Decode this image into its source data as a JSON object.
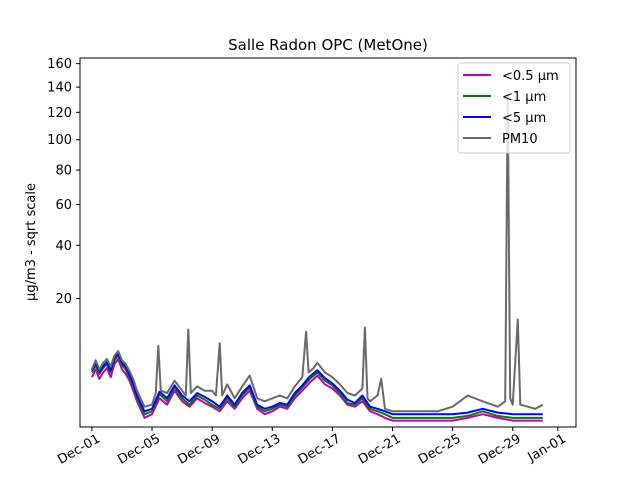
{
  "chart_data": {
    "type": "line",
    "title": "Salle Radon OPC (MetOne)",
    "xlabel": "",
    "ylabel": "µg/m3 - sqrt scale",
    "y_scale": "sqrt",
    "ylim": [
      0,
      165
    ],
    "y_ticks": [
      20,
      40,
      60,
      80,
      100,
      120,
      140,
      160
    ],
    "x_ticks": [
      {
        "date": "2023-12-01",
        "label": "Dec-01"
      },
      {
        "date": "2023-12-05",
        "label": "Dec-05"
      },
      {
        "date": "2023-12-09",
        "label": "Dec-09"
      },
      {
        "date": "2023-12-13",
        "label": "Dec-13"
      },
      {
        "date": "2023-12-17",
        "label": "Dec-17"
      },
      {
        "date": "2023-12-21",
        "label": "Dec-21"
      },
      {
        "date": "2023-12-25",
        "label": "Dec-25"
      },
      {
        "date": "2023-12-29",
        "label": "Dec-29"
      },
      {
        "date": "2024-01-01",
        "label": "Jan-01"
      }
    ],
    "xlim": [
      "2023-11-30T05:00",
      "2024-01-02T05:00"
    ],
    "legend_position": "top-right",
    "series": [
      {
        "name": "<0.5 µm",
        "color": "#bf00bf",
        "points": [
          [
            "2023-12-01T00:00",
            3.0
          ],
          [
            "2023-12-01T06:00",
            4.0
          ],
          [
            "2023-12-01T12:00",
            2.8
          ],
          [
            "2023-12-01T18:00",
            3.6
          ],
          [
            "2023-12-02T00:00",
            4.2
          ],
          [
            "2023-12-02T06:00",
            3.0
          ],
          [
            "2023-12-02T12:00",
            4.8
          ],
          [
            "2023-12-02T18:00",
            5.6
          ],
          [
            "2023-12-03T00:00",
            4.0
          ],
          [
            "2023-12-03T06:00",
            3.4
          ],
          [
            "2023-12-03T12:00",
            2.6
          ],
          [
            "2023-12-03T18:00",
            1.6
          ],
          [
            "2023-12-04T00:00",
            0.8
          ],
          [
            "2023-12-04T12:00",
            0.1
          ],
          [
            "2023-12-05T00:00",
            0.2
          ],
          [
            "2023-12-05T12:00",
            1.0
          ],
          [
            "2023-12-06T00:00",
            0.6
          ],
          [
            "2023-12-06T12:00",
            1.6
          ],
          [
            "2023-12-07T00:00",
            0.8
          ],
          [
            "2023-12-07T12:00",
            0.5
          ],
          [
            "2023-12-08T00:00",
            1.0
          ],
          [
            "2023-12-08T12:00",
            0.7
          ],
          [
            "2023-12-09T00:00",
            0.5
          ],
          [
            "2023-12-09T12:00",
            0.3
          ],
          [
            "2023-12-10T00:00",
            0.8
          ],
          [
            "2023-12-10T12:00",
            0.4
          ],
          [
            "2023-12-11T00:00",
            1.0
          ],
          [
            "2023-12-11T12:00",
            1.6
          ],
          [
            "2023-12-12T00:00",
            0.4
          ],
          [
            "2023-12-12T12:00",
            0.2
          ],
          [
            "2023-12-13T00:00",
            0.3
          ],
          [
            "2023-12-13T12:00",
            0.5
          ],
          [
            "2023-12-14T00:00",
            0.4
          ],
          [
            "2023-12-14T12:00",
            1.0
          ],
          [
            "2023-12-15T00:00",
            1.6
          ],
          [
            "2023-12-15T12:00",
            2.4
          ],
          [
            "2023-12-16T00:00",
            3.2
          ],
          [
            "2023-12-16T12:00",
            2.2
          ],
          [
            "2023-12-17T00:00",
            1.8
          ],
          [
            "2023-12-17T12:00",
            1.2
          ],
          [
            "2023-12-18T00:00",
            0.6
          ],
          [
            "2023-12-18T12:00",
            0.5
          ],
          [
            "2023-12-19T00:00",
            0.8
          ],
          [
            "2023-12-19T12:00",
            0.3
          ],
          [
            "2023-12-20T00:00",
            0.2
          ],
          [
            "2023-12-20T12:00",
            0.1
          ],
          [
            "2023-12-21T00:00",
            0.05
          ],
          [
            "2023-12-22T00:00",
            0.05
          ],
          [
            "2023-12-23T00:00",
            0.05
          ],
          [
            "2023-12-24T00:00",
            0.05
          ],
          [
            "2023-12-25T00:00",
            0.05
          ],
          [
            "2023-12-26T00:00",
            0.1
          ],
          [
            "2023-12-27T00:00",
            0.2
          ],
          [
            "2023-12-28T00:00",
            0.1
          ],
          [
            "2023-12-29T00:00",
            0.05
          ],
          [
            "2023-12-30T00:00",
            0.05
          ],
          [
            "2023-12-31T00:00",
            0.05
          ]
        ]
      },
      {
        "name": "<1 µm",
        "color": "#008000",
        "points": [
          [
            "2023-12-01T00:00",
            3.6
          ],
          [
            "2023-12-01T06:00",
            4.6
          ],
          [
            "2023-12-01T12:00",
            3.4
          ],
          [
            "2023-12-01T18:00",
            4.2
          ],
          [
            "2023-12-02T00:00",
            4.8
          ],
          [
            "2023-12-02T06:00",
            3.6
          ],
          [
            "2023-12-02T12:00",
            5.4
          ],
          [
            "2023-12-02T18:00",
            6.2
          ],
          [
            "2023-12-03T00:00",
            4.6
          ],
          [
            "2023-12-03T06:00",
            4.0
          ],
          [
            "2023-12-03T12:00",
            3.0
          ],
          [
            "2023-12-03T18:00",
            2.0
          ],
          [
            "2023-12-04T00:00",
            1.0
          ],
          [
            "2023-12-04T12:00",
            0.2
          ],
          [
            "2023-12-05T00:00",
            0.3
          ],
          [
            "2023-12-05T12:00",
            1.3
          ],
          [
            "2023-12-06T00:00",
            0.8
          ],
          [
            "2023-12-06T12:00",
            1.9
          ],
          [
            "2023-12-07T00:00",
            1.0
          ],
          [
            "2023-12-07T12:00",
            0.6
          ],
          [
            "2023-12-08T00:00",
            1.2
          ],
          [
            "2023-12-08T12:00",
            0.9
          ],
          [
            "2023-12-09T00:00",
            0.6
          ],
          [
            "2023-12-09T12:00",
            0.4
          ],
          [
            "2023-12-10T00:00",
            1.0
          ],
          [
            "2023-12-10T12:00",
            0.5
          ],
          [
            "2023-12-11T00:00",
            1.2
          ],
          [
            "2023-12-11T12:00",
            1.9
          ],
          [
            "2023-12-12T00:00",
            0.5
          ],
          [
            "2023-12-12T12:00",
            0.3
          ],
          [
            "2023-12-13T00:00",
            0.4
          ],
          [
            "2023-12-13T12:00",
            0.6
          ],
          [
            "2023-12-14T00:00",
            0.5
          ],
          [
            "2023-12-14T12:00",
            1.2
          ],
          [
            "2023-12-15T00:00",
            1.9
          ],
          [
            "2023-12-15T12:00",
            2.8
          ],
          [
            "2023-12-16T00:00",
            3.6
          ],
          [
            "2023-12-16T12:00",
            2.6
          ],
          [
            "2023-12-17T00:00",
            2.1
          ],
          [
            "2023-12-17T12:00",
            1.4
          ],
          [
            "2023-12-18T00:00",
            0.7
          ],
          [
            "2023-12-18T12:00",
            0.6
          ],
          [
            "2023-12-19T00:00",
            1.0
          ],
          [
            "2023-12-19T12:00",
            0.4
          ],
          [
            "2023-12-20T00:00",
            0.3
          ],
          [
            "2023-12-20T12:00",
            0.2
          ],
          [
            "2023-12-21T00:00",
            0.1
          ],
          [
            "2023-12-22T00:00",
            0.1
          ],
          [
            "2023-12-23T00:00",
            0.1
          ],
          [
            "2023-12-24T00:00",
            0.1
          ],
          [
            "2023-12-25T00:00",
            0.1
          ],
          [
            "2023-12-26T00:00",
            0.15
          ],
          [
            "2023-12-27T00:00",
            0.3
          ],
          [
            "2023-12-28T00:00",
            0.15
          ],
          [
            "2023-12-29T00:00",
            0.1
          ],
          [
            "2023-12-30T00:00",
            0.1
          ],
          [
            "2023-12-31T00:00",
            0.1
          ]
        ]
      },
      {
        "name": "<5 µm",
        "color": "#0000ff",
        "points": [
          [
            "2023-12-01T00:00",
            3.9
          ],
          [
            "2023-12-01T06:00",
            4.9
          ],
          [
            "2023-12-01T12:00",
            3.7
          ],
          [
            "2023-12-01T18:00",
            4.5
          ],
          [
            "2023-12-02T00:00",
            5.1
          ],
          [
            "2023-12-02T06:00",
            3.9
          ],
          [
            "2023-12-02T12:00",
            5.8
          ],
          [
            "2023-12-02T18:00",
            6.6
          ],
          [
            "2023-12-03T00:00",
            5.0
          ],
          [
            "2023-12-03T06:00",
            4.4
          ],
          [
            "2023-12-03T12:00",
            3.3
          ],
          [
            "2023-12-03T18:00",
            2.3
          ],
          [
            "2023-12-04T00:00",
            1.2
          ],
          [
            "2023-12-04T12:00",
            0.3
          ],
          [
            "2023-12-05T00:00",
            0.4
          ],
          [
            "2023-12-05T12:00",
            1.5
          ],
          [
            "2023-12-06T00:00",
            1.0
          ],
          [
            "2023-12-06T12:00",
            2.1
          ],
          [
            "2023-12-07T00:00",
            1.2
          ],
          [
            "2023-12-07T12:00",
            0.8
          ],
          [
            "2023-12-08T00:00",
            1.4
          ],
          [
            "2023-12-08T12:00",
            1.1
          ],
          [
            "2023-12-09T00:00",
            0.8
          ],
          [
            "2023-12-09T12:00",
            0.5
          ],
          [
            "2023-12-10T00:00",
            1.2
          ],
          [
            "2023-12-10T12:00",
            0.6
          ],
          [
            "2023-12-11T00:00",
            1.4
          ],
          [
            "2023-12-11T12:00",
            2.1
          ],
          [
            "2023-12-12T00:00",
            0.6
          ],
          [
            "2023-12-12T12:00",
            0.4
          ],
          [
            "2023-12-13T00:00",
            0.5
          ],
          [
            "2023-12-13T12:00",
            0.7
          ],
          [
            "2023-12-14T00:00",
            0.6
          ],
          [
            "2023-12-14T12:00",
            1.4
          ],
          [
            "2023-12-15T00:00",
            2.1
          ],
          [
            "2023-12-15T12:00",
            3.1
          ],
          [
            "2023-12-16T00:00",
            3.9
          ],
          [
            "2023-12-16T12:00",
            2.9
          ],
          [
            "2023-12-17T00:00",
            2.3
          ],
          [
            "2023-12-17T12:00",
            1.6
          ],
          [
            "2023-12-18T00:00",
            0.9
          ],
          [
            "2023-12-18T12:00",
            0.7
          ],
          [
            "2023-12-19T00:00",
            1.2
          ],
          [
            "2023-12-19T12:00",
            0.5
          ],
          [
            "2023-12-20T00:00",
            0.4
          ],
          [
            "2023-12-20T12:00",
            0.3
          ],
          [
            "2023-12-21T00:00",
            0.2
          ],
          [
            "2023-12-22T00:00",
            0.2
          ],
          [
            "2023-12-23T00:00",
            0.2
          ],
          [
            "2023-12-24T00:00",
            0.2
          ],
          [
            "2023-12-25T00:00",
            0.2
          ],
          [
            "2023-12-26T00:00",
            0.25
          ],
          [
            "2023-12-27T00:00",
            0.4
          ],
          [
            "2023-12-28T00:00",
            0.25
          ],
          [
            "2023-12-29T00:00",
            0.2
          ],
          [
            "2023-12-30T00:00",
            0.2
          ],
          [
            "2023-12-31T00:00",
            0.2
          ]
        ]
      },
      {
        "name": "PM10",
        "color": "#696969",
        "points": [
          [
            "2023-12-01T00:00",
            4.0
          ],
          [
            "2023-12-01T06:00",
            5.4
          ],
          [
            "2023-12-01T12:00",
            4.0
          ],
          [
            "2023-12-01T18:00",
            5.0
          ],
          [
            "2023-12-02T00:00",
            5.6
          ],
          [
            "2023-12-02T06:00",
            4.4
          ],
          [
            "2023-12-02T12:00",
            6.2
          ],
          [
            "2023-12-02T18:00",
            7.0
          ],
          [
            "2023-12-03T00:00",
            5.4
          ],
          [
            "2023-12-03T06:00",
            4.8
          ],
          [
            "2023-12-03T12:00",
            3.8
          ],
          [
            "2023-12-03T18:00",
            2.8
          ],
          [
            "2023-12-04T00:00",
            1.6
          ],
          [
            "2023-12-04T12:00",
            0.5
          ],
          [
            "2023-12-05T00:00",
            0.6
          ],
          [
            "2023-12-05T06:00",
            1.4
          ],
          [
            "2023-12-05T10:00",
            8.0
          ],
          [
            "2023-12-05T14:00",
            1.6
          ],
          [
            "2023-12-06T00:00",
            1.4
          ],
          [
            "2023-12-06T12:00",
            2.6
          ],
          [
            "2023-12-07T00:00",
            1.6
          ],
          [
            "2023-12-07T06:00",
            1.2
          ],
          [
            "2023-12-07T10:00",
            11.5
          ],
          [
            "2023-12-07T14:00",
            1.4
          ],
          [
            "2023-12-08T00:00",
            2.0
          ],
          [
            "2023-12-08T12:00",
            1.6
          ],
          [
            "2023-12-09T00:00",
            1.6
          ],
          [
            "2023-12-09T06:00",
            1.2
          ],
          [
            "2023-12-09T12:00",
            8.5
          ],
          [
            "2023-12-09T16:00",
            1.2
          ],
          [
            "2023-12-10T00:00",
            2.2
          ],
          [
            "2023-12-10T12:00",
            1.0
          ],
          [
            "2023-12-11T00:00",
            2.0
          ],
          [
            "2023-12-11T12:00",
            3.2
          ],
          [
            "2023-12-12T00:00",
            1.0
          ],
          [
            "2023-12-12T12:00",
            0.8
          ],
          [
            "2023-12-13T00:00",
            1.0
          ],
          [
            "2023-12-13T12:00",
            1.2
          ],
          [
            "2023-12-14T00:00",
            1.0
          ],
          [
            "2023-12-14T12:00",
            2.0
          ],
          [
            "2023-12-15T00:00",
            3.0
          ],
          [
            "2023-12-15T06:00",
            11.0
          ],
          [
            "2023-12-15T10:00",
            3.6
          ],
          [
            "2023-12-15T18:00",
            4.2
          ],
          [
            "2023-12-16T00:00",
            5.0
          ],
          [
            "2023-12-16T12:00",
            3.6
          ],
          [
            "2023-12-17T00:00",
            3.0
          ],
          [
            "2023-12-17T12:00",
            2.2
          ],
          [
            "2023-12-18T00:00",
            1.4
          ],
          [
            "2023-12-18T12:00",
            1.2
          ],
          [
            "2023-12-19T00:00",
            1.8
          ],
          [
            "2023-12-19T04:00",
            12.0
          ],
          [
            "2023-12-19T08:00",
            1.0
          ],
          [
            "2023-12-19T12:00",
            0.8
          ],
          [
            "2023-12-20T00:00",
            1.2
          ],
          [
            "2023-12-20T06:00",
            2.8
          ],
          [
            "2023-12-20T12:00",
            0.4
          ],
          [
            "2023-12-21T00:00",
            0.3
          ],
          [
            "2023-12-22T00:00",
            0.3
          ],
          [
            "2023-12-23T00:00",
            0.3
          ],
          [
            "2023-12-24T00:00",
            0.3
          ],
          [
            "2023-12-25T00:00",
            0.5
          ],
          [
            "2023-12-26T00:00",
            1.2
          ],
          [
            "2023-12-27T00:00",
            0.8
          ],
          [
            "2023-12-28T00:00",
            0.5
          ],
          [
            "2023-12-28T12:00",
            0.8
          ],
          [
            "2023-12-28T16:00",
            135.0
          ],
          [
            "2023-12-28T20:00",
            1.0
          ],
          [
            "2023-12-29T00:00",
            0.6
          ],
          [
            "2023-12-29T08:00",
            14.0
          ],
          [
            "2023-12-29T12:00",
            0.6
          ],
          [
            "2023-12-30T00:00",
            0.5
          ],
          [
            "2023-12-30T12:00",
            0.4
          ],
          [
            "2023-12-31T00:00",
            0.6
          ]
        ]
      }
    ]
  }
}
